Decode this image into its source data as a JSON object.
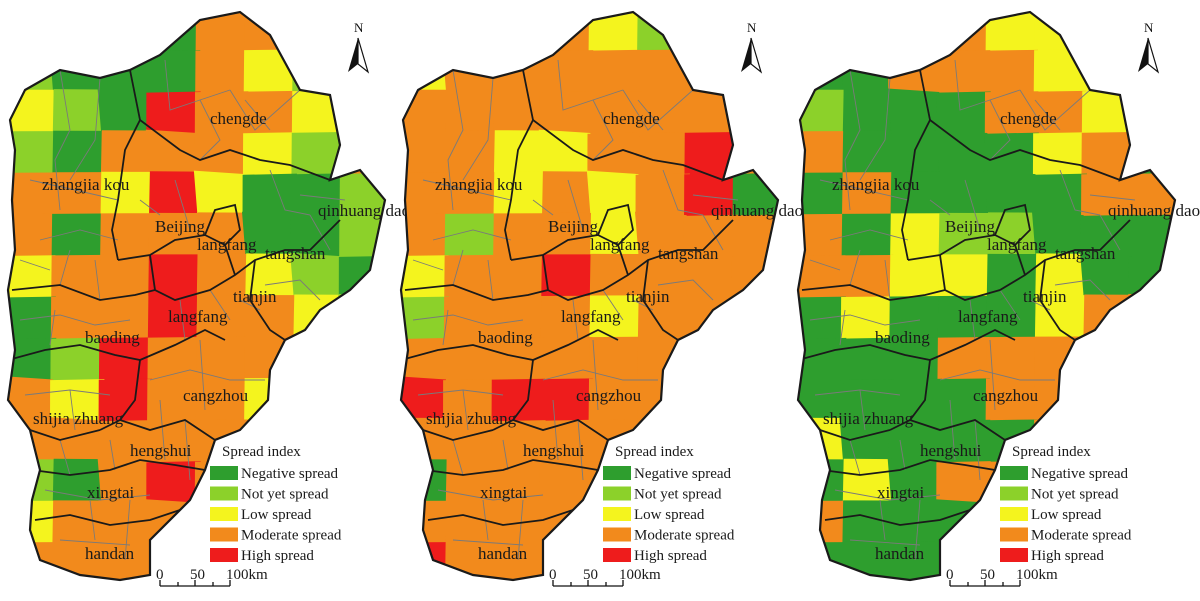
{
  "colors": {
    "negative": "#2e9e2e",
    "not_yet": "#8cd12a",
    "low": "#f4f41e",
    "moderate": "#f28a1c",
    "high": "#ee1c1c",
    "outline": "#1a1a1a",
    "county_line": "#7a7a7a"
  },
  "legend": {
    "title": "Spread index",
    "items": [
      {
        "key": "negative",
        "label": "Negative spread"
      },
      {
        "key": "not_yet",
        "label": "Not yet spread"
      },
      {
        "key": "low",
        "label": "Low spread"
      },
      {
        "key": "moderate",
        "label": "Moderate spread"
      },
      {
        "key": "high",
        "label": "High spread"
      }
    ]
  },
  "scale_bar": {
    "ticks": [
      "0",
      "50",
      "100km"
    ]
  },
  "north_arrow": {
    "label": "N"
  },
  "city_labels": [
    "chengde",
    "zhangjia kou",
    "Beijing",
    "qinhuang dao",
    "langfang",
    "tangshan",
    "tianjin",
    "langfang",
    "baoding",
    "cangzhou",
    "shijia zhuang",
    "hengshui",
    "xingtai",
    "handan"
  ],
  "maps": [
    {
      "id": "map-1",
      "cells": [
        "negative",
        "negative",
        "negative",
        "negative",
        "moderate",
        "moderate",
        "negative",
        "negative",
        "not_yet",
        "negative",
        "negative",
        "negative",
        "moderate",
        "low",
        "not_yet",
        "moderate",
        "low",
        "not_yet",
        "negative",
        "high",
        "moderate",
        "moderate",
        "low",
        "moderate",
        "not_yet",
        "negative",
        "moderate",
        "moderate",
        "moderate",
        "low",
        "not_yet",
        "moderate",
        "moderate",
        "moderate",
        "low",
        "high",
        "low",
        "negative",
        "negative",
        "not_yet",
        "moderate",
        "negative",
        "moderate",
        "moderate",
        "moderate",
        "negative",
        "negative",
        "not_yet",
        "low",
        "moderate",
        "moderate",
        "high",
        "moderate",
        "low",
        "not_yet",
        "negative",
        "negative",
        "moderate",
        "moderate",
        "high",
        "moderate",
        "moderate",
        "low",
        "not_yet",
        "negative",
        "not_yet",
        "high",
        "moderate",
        "moderate",
        "moderate",
        "low",
        "moderate",
        "moderate",
        "low",
        "high",
        "moderate",
        "moderate",
        "low",
        "moderate",
        "moderate",
        "moderate",
        "moderate",
        "moderate",
        "moderate",
        "moderate",
        "moderate",
        "low",
        "moderate",
        "not_yet",
        "negative",
        "moderate",
        "high",
        "moderate",
        "moderate",
        "moderate",
        "moderate",
        "low",
        "moderate",
        "moderate",
        "moderate",
        "low",
        "moderate",
        "moderate",
        "moderate",
        "moderate",
        "moderate",
        "moderate",
        "moderate",
        "moderate",
        "moderate",
        "moderate",
        "moderate"
      ]
    },
    {
      "id": "map-2",
      "cells": [
        "moderate",
        "low",
        "moderate",
        "moderate",
        "low",
        "not_yet",
        "moderate",
        "moderate",
        "low",
        "moderate",
        "moderate",
        "moderate",
        "moderate",
        "moderate",
        "moderate",
        "moderate",
        "moderate",
        "moderate",
        "moderate",
        "moderate",
        "moderate",
        "moderate",
        "moderate",
        "high",
        "moderate",
        "moderate",
        "low",
        "low",
        "moderate",
        "moderate",
        "high",
        "moderate",
        "moderate",
        "moderate",
        "low",
        "moderate",
        "low",
        "moderate",
        "high",
        "negative",
        "moderate",
        "not_yet",
        "moderate",
        "moderate",
        "low",
        "moderate",
        "moderate",
        "moderate",
        "low",
        "moderate",
        "moderate",
        "high",
        "moderate",
        "moderate",
        "moderate",
        "moderate",
        "not_yet",
        "moderate",
        "moderate",
        "moderate",
        "low",
        "moderate",
        "moderate",
        "moderate",
        "moderate",
        "moderate",
        "moderate",
        "moderate",
        "moderate",
        "moderate",
        "low",
        "moderate",
        "high",
        "moderate",
        "high",
        "high",
        "moderate",
        "moderate",
        "moderate",
        "moderate",
        "moderate",
        "moderate",
        "moderate",
        "moderate",
        "moderate",
        "moderate",
        "moderate",
        "moderate",
        "negative",
        "moderate",
        "moderate",
        "moderate",
        "moderate",
        "moderate",
        "moderate",
        "moderate",
        "moderate",
        "moderate",
        "moderate",
        "moderate",
        "moderate",
        "moderate",
        "moderate",
        "moderate",
        "high",
        "moderate",
        "moderate",
        "moderate",
        "moderate",
        "moderate",
        "moderate",
        "moderate"
      ]
    },
    {
      "id": "map-3",
      "cells": [
        "negative",
        "negative",
        "moderate",
        "moderate",
        "low",
        "low",
        "high",
        "negative",
        "negative",
        "negative",
        "moderate",
        "moderate",
        "moderate",
        "low",
        "low",
        "moderate",
        "not_yet",
        "negative",
        "negative",
        "negative",
        "moderate",
        "moderate",
        "low",
        "moderate",
        "moderate",
        "negative",
        "negative",
        "negative",
        "negative",
        "low",
        "moderate",
        "negative",
        "negative",
        "moderate",
        "negative",
        "negative",
        "negative",
        "negative",
        "moderate",
        "moderate",
        "moderate",
        "negative",
        "low",
        "not_yet",
        "not_yet",
        "negative",
        "negative",
        "negative",
        "moderate",
        "moderate",
        "low",
        "low",
        "negative",
        "low",
        "negative",
        "negative",
        "negative",
        "low",
        "negative",
        "negative",
        "negative",
        "low",
        "moderate",
        "moderate",
        "negative",
        "negative",
        "negative",
        "moderate",
        "moderate",
        "moderate",
        "low",
        "moderate",
        "negative",
        "negative",
        "negative",
        "negative",
        "moderate",
        "moderate",
        "moderate",
        "negative",
        "low",
        "negative",
        "negative",
        "negative",
        "negative",
        "moderate",
        "moderate",
        "moderate",
        "negative",
        "low",
        "negative",
        "moderate",
        "moderate",
        "moderate",
        "moderate",
        "moderate",
        "moderate",
        "negative",
        "negative",
        "negative",
        "moderate",
        "moderate",
        "moderate",
        "moderate",
        "negative",
        "negative",
        "negative",
        "negative",
        "moderate",
        "moderate",
        "moderate",
        "moderate"
      ]
    }
  ]
}
